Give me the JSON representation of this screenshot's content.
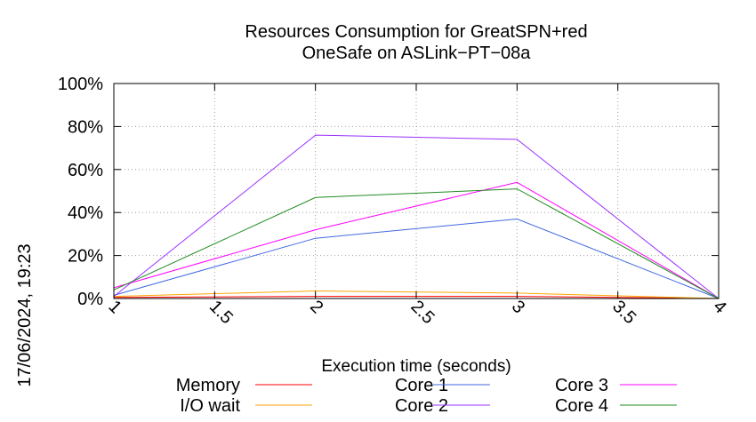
{
  "chart_data": {
    "type": "line",
    "title_lines": [
      "Resources Consumption for GreatSPN+red",
      "OneSafe on ASLink−PT−08a"
    ],
    "xlabel": "Execution time (seconds)",
    "ylabel": "",
    "timestamp": "17/06/2024, 19:23",
    "xlim": [
      1,
      4
    ],
    "ylim": [
      0,
      100
    ],
    "x_ticks": [
      1,
      1.5,
      2,
      2.5,
      3,
      3.5,
      4
    ],
    "x_tick_labels": [
      "1",
      "1.5",
      "2",
      "2.5",
      "3",
      "3.5",
      "4"
    ],
    "y_ticks": [
      0,
      20,
      40,
      60,
      80,
      100
    ],
    "y_tick_labels": [
      "0%",
      "20%",
      "40%",
      "60%",
      "80%",
      "100%"
    ],
    "grid": true,
    "legend_position": "bottom",
    "x": [
      1,
      2,
      3,
      4
    ],
    "series": [
      {
        "name": "Memory",
        "color": "#ff0000",
        "values": [
          0.5,
          1,
          1,
          0
        ]
      },
      {
        "name": "I/O wait",
        "color": "#ffa500",
        "values": [
          1,
          3.5,
          2.5,
          0
        ]
      },
      {
        "name": "Core 1",
        "color": "#4169e1",
        "values": [
          1.5,
          28,
          37,
          0
        ]
      },
      {
        "name": "Core 2",
        "color": "#9b30ff",
        "values": [
          1,
          76,
          74,
          0
        ]
      },
      {
        "name": "Core 3",
        "color": "#ff00ff",
        "values": [
          5,
          32,
          54,
          0
        ]
      },
      {
        "name": "Core 4",
        "color": "#228b22",
        "values": [
          4,
          47,
          51,
          0
        ]
      }
    ]
  }
}
